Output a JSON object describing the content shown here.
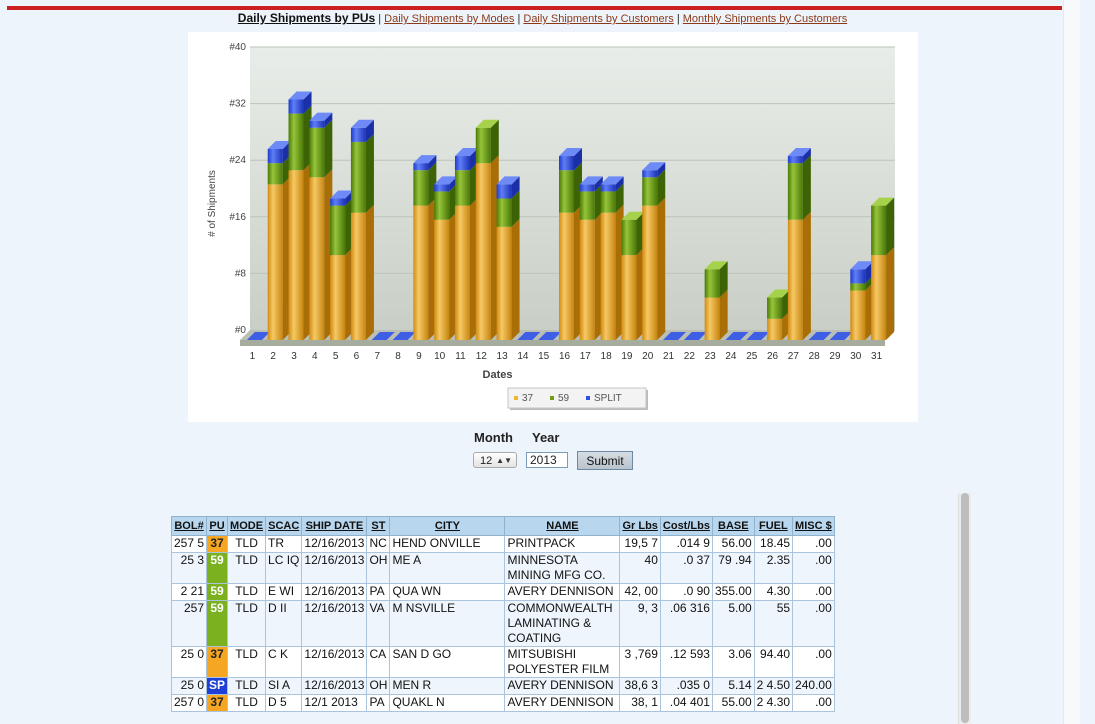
{
  "nav": {
    "active": "Daily Shipments by PUs",
    "links": [
      "Daily Shipments by Modes",
      "Daily Shipments by Customers",
      "Monthly Shipments by Customers"
    ],
    "separator": "|"
  },
  "chart_data": {
    "type": "bar",
    "stacked": true,
    "three_d": true,
    "ylabel": "# of Shipments",
    "xlabel": "Dates",
    "ylim": [
      0,
      40
    ],
    "yticks": [
      "#0",
      "#8",
      "#16",
      "#24",
      "#32",
      "#40"
    ],
    "categories": [
      "1",
      "2",
      "3",
      "4",
      "5",
      "6",
      "7",
      "8",
      "9",
      "10",
      "11",
      "12",
      "13",
      "14",
      "15",
      "16",
      "17",
      "18",
      "19",
      "20",
      "21",
      "22",
      "23",
      "24",
      "25",
      "26",
      "27",
      "28",
      "29",
      "30",
      "31"
    ],
    "series": [
      {
        "name": "37",
        "color": "#f0b531",
        "values": [
          0,
          22,
          24,
          23,
          12,
          18,
          0,
          0,
          19,
          17,
          19,
          25,
          16,
          0,
          0,
          18,
          17,
          18,
          12,
          19,
          0,
          0,
          6,
          0,
          0,
          3,
          17,
          0,
          0,
          7,
          12
        ]
      },
      {
        "name": "59",
        "color": "#6f9e16",
        "values": [
          0,
          3,
          8,
          7,
          7,
          10,
          0,
          0,
          5,
          4,
          5,
          5,
          4,
          0,
          0,
          6,
          4,
          3,
          5,
          4,
          0,
          0,
          4,
          0,
          0,
          3,
          8,
          0,
          0,
          1,
          7
        ]
      },
      {
        "name": "SPLIT",
        "color": "#2f4fe0",
        "values": [
          0,
          2,
          2,
          1,
          1,
          2,
          0,
          0,
          1,
          1,
          2,
          0,
          2,
          0,
          0,
          2,
          1,
          1,
          0,
          1,
          0,
          0,
          0,
          0,
          0,
          0,
          1,
          0,
          0,
          2,
          0
        ]
      }
    ],
    "legend": "bottom-center",
    "grid": true
  },
  "form": {
    "month_label": "Month",
    "year_label": "Year",
    "month_value": "12",
    "year_value": "2013",
    "submit_label": "Submit"
  },
  "table": {
    "headers": [
      "BOL#",
      "PU",
      "MODE",
      "SCAC",
      "SHIP DATE",
      "ST",
      "CITY",
      "NAME",
      "Gr Lbs",
      "Cost/Lbs",
      "BASE",
      "FUEL",
      "MISC $"
    ],
    "rows": [
      {
        "bol": "257 5",
        "pu": "37",
        "mode": "TLD",
        "scac": "TR",
        "date": "12/16/2013",
        "st": "NC",
        "city": "HEND ONVILLE",
        "name": "PRINTPACK",
        "gr": "19,5 7",
        "cost": ".014 9",
        "base": "56.00",
        "fuel": "18.45",
        "misc": ".00"
      },
      {
        "bol": "25 3",
        "pu": "59",
        "mode": "TLD",
        "scac": "LC IQ",
        "date": "12/16/2013",
        "st": "OH",
        "city": "ME A",
        "name": "MINNESOTA MINING MFG CO.",
        "gr": "40",
        "cost": ".0 37",
        "base": "79 .94",
        "fuel": "2.35",
        "misc": ".00"
      },
      {
        "bol": "2 21",
        "pu": "59",
        "mode": "TLD",
        "scac": "E WI",
        "date": "12/16/2013",
        "st": "PA",
        "city": "QUA WN",
        "name": "AVERY DENNISON",
        "gr": "42, 00",
        "cost": ".0 90",
        "base": "355.00",
        "fuel": "4.30",
        "misc": ".00"
      },
      {
        "bol": "257",
        "pu": "59",
        "mode": "TLD",
        "scac": "D II",
        "date": "12/16/2013",
        "st": "VA",
        "city": "M NSVILLE",
        "name": "COMMONWEALTH LAMINATING & COATING",
        "gr": "9, 3",
        "cost": ".06 316",
        "base": "5.00",
        "fuel": "55",
        "misc": ".00"
      },
      {
        "bol": "25 0",
        "pu": "37",
        "mode": "TLD",
        "scac": "C K",
        "date": "12/16/2013",
        "st": "CA",
        "city": "SAN D GO",
        "name": "MITSUBISHI POLYESTER FILM",
        "gr": "3 ,769",
        "cost": ".12 593",
        "base": "3.06",
        "fuel": "94.40",
        "misc": ".00"
      },
      {
        "bol": "25 0",
        "pu": "SP",
        "mode": "TLD",
        "scac": "SI A",
        "date": "12/16/2013",
        "st": "OH",
        "city": "MEN R",
        "name": "AVERY DENNISON",
        "gr": "38,6 3",
        "cost": ".035 0",
        "base": "5.14",
        "fuel": "2 4.50",
        "misc": "240.00"
      },
      {
        "bol": "257 0",
        "pu": "37",
        "mode": "TLD",
        "scac": "D 5",
        "date": "12/1 2013",
        "st": "PA",
        "city": "QUAKL N",
        "name": "AVERY DENNISON",
        "gr": "38, 1",
        "cost": ".04 401",
        "base": "55.00",
        "fuel": "2 4.30",
        "misc": ".00"
      }
    ]
  }
}
